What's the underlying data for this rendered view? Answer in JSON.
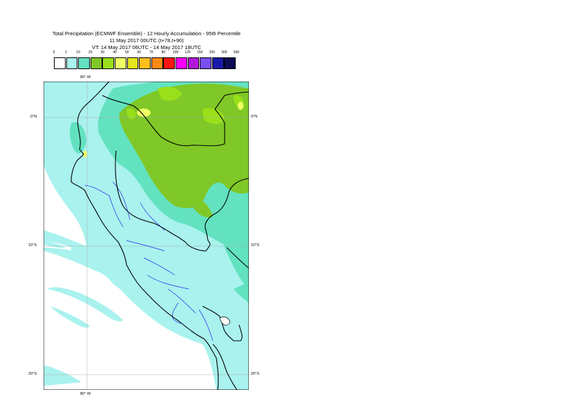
{
  "header": {
    "line1": "Total Precipitation (ECMWF Ensemble) - 12 Hourly Accumulation - 95th Percentile",
    "line2": "11 May 2017 00UTC (t+78,t+90)",
    "line3": "VT: 14 May 2017 06UTC - 14 May 2017 18UTC"
  },
  "legend": {
    "thresholds": [
      "0",
      "1",
      "10",
      "20",
      "30",
      "40",
      "50",
      "60",
      "70",
      "80",
      "100",
      "125",
      "150",
      "200",
      "300",
      "500"
    ],
    "colors": [
      "#ffffff",
      "#a9f2ee",
      "#63e2c0",
      "#80c827",
      "#99e01a",
      "#eeff66",
      "#e6e61e",
      "#ffbf1f",
      "#ff8a14",
      "#ff1414",
      "#ff00ff",
      "#b217d9",
      "#7a4ef0",
      "#1a1aaa",
      "#0c0c52"
    ]
  },
  "map": {
    "lon_labels": {
      "top": "80° W",
      "bottom": "80° W"
    },
    "lat_labels": [
      {
        "left": "0°N",
        "right": "0°N"
      },
      {
        "left": "10°S",
        "right": "10°S"
      },
      {
        "left": "20°S",
        "right": "20°S"
      }
    ]
  }
}
